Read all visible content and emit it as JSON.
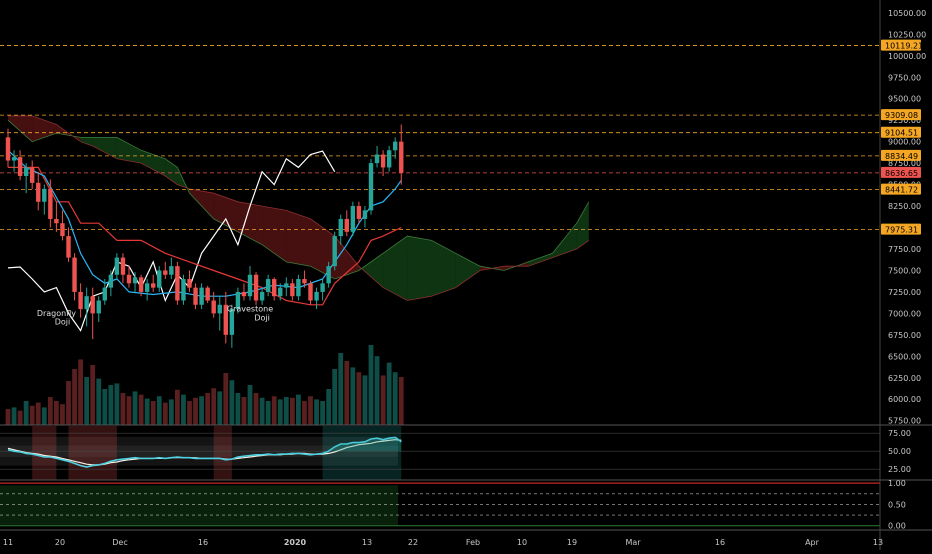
{
  "colors": {
    "background": "#000000",
    "up": "#26a69a",
    "down": "#ef5350",
    "level": "#f5a623",
    "close_line": "#ff8a80",
    "overlay": "#ffffff",
    "tenkan": "#29b6f6",
    "kijun": "#e53935",
    "cloud_bull": "#1b5e20",
    "cloud_bear": "#7f1d1d",
    "rsi": "#4dd0e1",
    "rsi_signal": "#f5f0e1"
  },
  "chart_data": {
    "type": "candlestick",
    "title": "",
    "price_axis": {
      "ticks": [
        "10500.00",
        "10250.00",
        "10000.00",
        "9750.00",
        "9500.00",
        "9250.00",
        "9000.00",
        "8750.00",
        "8500.00",
        "8250.00",
        "8000.00",
        "7750.00",
        "7500.00",
        "7250.00",
        "7000.00",
        "6750.00",
        "6500.00",
        "6250.00",
        "6000.00",
        "5750.00"
      ],
      "range": [
        5700,
        10650
      ]
    },
    "rsi_axis": {
      "ticks": [
        "75.00",
        "50.00",
        "25.00"
      ],
      "range": [
        10,
        85
      ]
    },
    "osc_axis": {
      "ticks": [
        "1.00",
        "0.50",
        "0.00"
      ],
      "range": [
        -0.1,
        1.05
      ]
    },
    "x_axis_labels": [
      "11",
      "20",
      "Dec",
      "16",
      "2020",
      "13",
      "22",
      "Feb",
      "10",
      "19",
      "Mar",
      "16",
      "Apr",
      "13"
    ],
    "price_levels": [
      {
        "value": "10119.21",
        "price": 10119.21,
        "color": "#f5a623"
      },
      {
        "value": "9309.08",
        "price": 9309.08,
        "color": "#f5a623"
      },
      {
        "value": "9104.51",
        "price": 9104.51,
        "color": "#f5a623"
      },
      {
        "value": "8834.49",
        "price": 8834.49,
        "color": "#f5a623"
      },
      {
        "value": "8636.65",
        "price": 8636.65,
        "color": "#ef5350"
      },
      {
        "value": "8441.72",
        "price": 8441.72,
        "color": "#f5a623"
      },
      {
        "value": "7975.31",
        "price": 7975.31,
        "color": "#f5a623"
      }
    ],
    "annotations": [
      {
        "text": "Dragonfly",
        "price": 6970,
        "bar": 8
      },
      {
        "text": "Doji",
        "price": 6870,
        "bar": 9
      },
      {
        "text": "Gravestone",
        "price": 7020,
        "bar": 40
      },
      {
        "text": "Doji",
        "price": 6920,
        "bar": 42
      }
    ],
    "candles": [
      [
        9050,
        9150,
        8700,
        8780
      ],
      [
        8780,
        8900,
        8650,
        8820
      ],
      [
        8820,
        8900,
        8550,
        8600
      ],
      [
        8600,
        8750,
        8400,
        8700
      ],
      [
        8700,
        8780,
        8450,
        8520
      ],
      [
        8520,
        8650,
        8200,
        8300
      ],
      [
        8300,
        8500,
        8150,
        8450
      ],
      [
        8450,
        8560,
        8000,
        8100
      ],
      [
        8100,
        8300,
        7950,
        8050
      ],
      [
        8050,
        8200,
        7850,
        7900
      ],
      [
        7900,
        8000,
        7600,
        7650
      ],
      [
        7650,
        7700,
        7150,
        7250
      ],
      [
        7250,
        7350,
        6950,
        7050
      ],
      [
        7050,
        7300,
        6850,
        7200
      ],
      [
        7200,
        7300,
        6700,
        7000
      ],
      [
        7000,
        7200,
        6900,
        7150
      ],
      [
        7150,
        7400,
        7100,
        7300
      ],
      [
        7300,
        7500,
        7200,
        7450
      ],
      [
        7450,
        7700,
        7400,
        7650
      ],
      [
        7650,
        7700,
        7350,
        7450
      ],
      [
        7450,
        7550,
        7300,
        7350
      ],
      [
        7350,
        7480,
        7250,
        7420
      ],
      [
        7420,
        7450,
        7200,
        7250
      ],
      [
        7250,
        7400,
        7150,
        7350
      ],
      [
        7350,
        7450,
        7250,
        7300
      ],
      [
        7300,
        7550,
        7250,
        7500
      ],
      [
        7500,
        7600,
        7400,
        7450
      ],
      [
        7450,
        7650,
        7400,
        7550
      ],
      [
        7550,
        7600,
        7100,
        7150
      ],
      [
        7150,
        7450,
        7100,
        7400
      ],
      [
        7400,
        7500,
        7250,
        7300
      ],
      [
        7300,
        7350,
        7050,
        7100
      ],
      [
        7100,
        7350,
        7050,
        7300
      ],
      [
        7300,
        7320,
        7120,
        7150
      ],
      [
        7150,
        7250,
        6950,
        7000
      ],
      [
        7000,
        7200,
        6800,
        7100
      ],
      [
        7100,
        7250,
        6650,
        6750
      ],
      [
        6750,
        7100,
        6600,
        7050
      ],
      [
        7050,
        7300,
        7000,
        7250
      ],
      [
        7250,
        7350,
        7150,
        7200
      ],
      [
        7200,
        7550,
        7150,
        7450
      ],
      [
        7450,
        7480,
        7100,
        7150
      ],
      [
        7150,
        7300,
        7100,
        7250
      ],
      [
        7250,
        7450,
        7200,
        7400
      ],
      [
        7400,
        7420,
        7150,
        7200
      ],
      [
        7200,
        7350,
        7150,
        7300
      ],
      [
        7300,
        7420,
        7200,
        7350
      ],
      [
        7350,
        7400,
        7150,
        7200
      ],
      [
        7200,
        7450,
        7150,
        7400
      ],
      [
        7400,
        7500,
        7300,
        7350
      ],
      [
        7350,
        7380,
        7100,
        7150
      ],
      [
        7150,
        7300,
        7050,
        7250
      ],
      [
        7250,
        7400,
        7150,
        7350
      ],
      [
        7350,
        7600,
        7300,
        7550
      ],
      [
        7550,
        7950,
        7500,
        7900
      ],
      [
        7900,
        8150,
        7800,
        8100
      ],
      [
        8100,
        8200,
        7900,
        7950
      ],
      [
        7950,
        8300,
        7900,
        8250
      ],
      [
        8250,
        8300,
        8050,
        8100
      ],
      [
        8100,
        8250,
        8000,
        8200
      ],
      [
        8200,
        8800,
        8150,
        8750
      ],
      [
        8750,
        8950,
        8700,
        8850
      ],
      [
        8850,
        8900,
        8600,
        8700
      ],
      [
        8700,
        8950,
        8650,
        8900
      ],
      [
        8900,
        9050,
        8800,
        9000
      ],
      [
        9000,
        9200,
        8500,
        8640
      ]
    ],
    "volume": [
      0.2,
      0.22,
      0.18,
      0.3,
      0.24,
      0.28,
      0.22,
      0.35,
      0.3,
      0.26,
      0.55,
      0.7,
      0.82,
      0.6,
      0.75,
      0.58,
      0.45,
      0.5,
      0.52,
      0.4,
      0.36,
      0.42,
      0.38,
      0.33,
      0.3,
      0.36,
      0.28,
      0.32,
      0.44,
      0.38,
      0.3,
      0.34,
      0.36,
      0.4,
      0.46,
      0.42,
      0.65,
      0.56,
      0.4,
      0.35,
      0.5,
      0.4,
      0.34,
      0.3,
      0.36,
      0.32,
      0.35,
      0.34,
      0.38,
      0.3,
      0.36,
      0.32,
      0.3,
      0.45,
      0.7,
      0.9,
      0.8,
      0.72,
      0.66,
      0.62,
      1.0,
      0.86,
      0.62,
      0.78,
      0.66,
      0.6
    ],
    "overlay_line": [
      [
        0,
        7530
      ],
      [
        2,
        7540
      ],
      [
        4,
        7400
      ],
      [
        6,
        7250
      ],
      [
        8,
        7300
      ],
      [
        10,
        7000
      ],
      [
        12,
        6800
      ],
      [
        14,
        7200
      ],
      [
        16,
        7250
      ],
      [
        18,
        7600
      ],
      [
        20,
        7550
      ],
      [
        22,
        7300
      ],
      [
        24,
        7600
      ],
      [
        26,
        7150
      ],
      [
        28,
        7450
      ],
      [
        30,
        7300
      ],
      [
        32,
        7700
      ],
      [
        34,
        7900
      ],
      [
        36,
        8100
      ],
      [
        38,
        7800
      ],
      [
        40,
        8250
      ],
      [
        42,
        8650
      ],
      [
        44,
        8500
      ],
      [
        46,
        8800
      ],
      [
        48,
        8700
      ],
      [
        50,
        8850
      ],
      [
        52,
        8890
      ],
      [
        54,
        8650
      ]
    ],
    "tenkan": [
      [
        0,
        8900
      ],
      [
        3,
        8700
      ],
      [
        6,
        8600
      ],
      [
        8,
        8350
      ],
      [
        10,
        8100
      ],
      [
        12,
        7700
      ],
      [
        14,
        7450
      ],
      [
        16,
        7350
      ],
      [
        18,
        7400
      ],
      [
        20,
        7250
      ],
      [
        24,
        7220
      ],
      [
        28,
        7250
      ],
      [
        32,
        7200
      ],
      [
        36,
        7200
      ],
      [
        40,
        7250
      ],
      [
        44,
        7330
      ],
      [
        48,
        7300
      ],
      [
        52,
        7400
      ],
      [
        54,
        7600
      ],
      [
        56,
        7800
      ],
      [
        58,
        8050
      ],
      [
        60,
        8250
      ],
      [
        62,
        8300
      ],
      [
        64,
        8450
      ],
      [
        65,
        8550
      ]
    ],
    "kijun": [
      [
        0,
        8700
      ],
      [
        5,
        8700
      ],
      [
        8,
        8300
      ],
      [
        10,
        8300
      ],
      [
        12,
        8050
      ],
      [
        15,
        8050
      ],
      [
        18,
        7850
      ],
      [
        22,
        7850
      ],
      [
        26,
        7700
      ],
      [
        30,
        7600
      ],
      [
        34,
        7500
      ],
      [
        38,
        7400
      ],
      [
        42,
        7300
      ],
      [
        46,
        7150
      ],
      [
        50,
        7100
      ],
      [
        52,
        7100
      ],
      [
        54,
        7350
      ],
      [
        58,
        7600
      ],
      [
        60,
        7850
      ],
      [
        62,
        7900
      ],
      [
        65,
        8000
      ]
    ],
    "cloud_a": [
      [
        0,
        9250
      ],
      [
        4,
        9000
      ],
      [
        8,
        9100
      ],
      [
        12,
        9050
      ],
      [
        14,
        9050
      ],
      [
        18,
        9050
      ],
      [
        22,
        8900
      ],
      [
        26,
        8800
      ],
      [
        28,
        8700
      ],
      [
        30,
        8400
      ],
      [
        34,
        8100
      ],
      [
        38,
        7950
      ],
      [
        42,
        7800
      ],
      [
        46,
        7600
      ],
      [
        50,
        7550
      ],
      [
        54,
        7400
      ],
      [
        58,
        7500
      ],
      [
        62,
        7700
      ],
      [
        66,
        7900
      ],
      [
        70,
        7850
      ],
      [
        74,
        7700
      ],
      [
        78,
        7550
      ],
      [
        82,
        7500
      ],
      [
        86,
        7600
      ],
      [
        90,
        7700
      ],
      [
        94,
        8050
      ],
      [
        96,
        8300
      ]
    ],
    "cloud_b": [
      [
        0,
        9300
      ],
      [
        4,
        9300
      ],
      [
        8,
        9200
      ],
      [
        12,
        9000
      ],
      [
        14,
        8950
      ],
      [
        18,
        8800
      ],
      [
        22,
        8750
      ],
      [
        26,
        8600
      ],
      [
        28,
        8500
      ],
      [
        30,
        8450
      ],
      [
        34,
        8400
      ],
      [
        38,
        8300
      ],
      [
        42,
        8250
      ],
      [
        46,
        8200
      ],
      [
        50,
        8100
      ],
      [
        54,
        7900
      ],
      [
        58,
        7550
      ],
      [
        62,
        7300
      ],
      [
        66,
        7150
      ],
      [
        70,
        7200
      ],
      [
        74,
        7300
      ],
      [
        78,
        7500
      ],
      [
        82,
        7550
      ],
      [
        86,
        7550
      ],
      [
        90,
        7650
      ],
      [
        94,
        7750
      ],
      [
        96,
        7850
      ]
    ],
    "rsi": [
      52,
      50,
      49,
      47,
      46,
      44,
      42,
      42,
      40,
      38,
      36,
      33,
      30,
      28,
      30,
      31,
      33,
      36,
      38,
      39,
      40,
      41,
      40,
      40,
      40,
      41,
      40,
      41,
      42,
      41,
      41,
      40,
      40,
      40,
      40,
      40,
      38,
      39,
      42,
      43,
      44,
      45,
      45,
      46,
      45,
      46,
      46,
      47,
      47,
      46,
      45,
      46,
      47,
      50,
      56,
      60,
      60,
      62,
      62,
      63,
      67,
      68,
      66,
      68,
      69,
      63
    ],
    "rsi_signal": [
      54,
      52,
      50,
      48,
      47,
      46,
      44,
      43,
      42,
      40,
      38,
      36,
      34,
      32,
      31,
      31,
      32,
      34,
      35,
      37,
      38,
      39,
      40,
      40,
      40,
      40,
      40,
      41,
      41,
      41,
      41,
      41,
      40,
      40,
      40,
      40,
      39,
      39,
      40,
      41,
      42,
      43,
      44,
      45,
      45,
      45,
      46,
      46,
      47,
      47,
      46,
      46,
      46,
      47,
      49,
      52,
      55,
      57,
      59,
      60,
      61,
      63,
      64,
      65,
      66,
      65
    ]
  }
}
